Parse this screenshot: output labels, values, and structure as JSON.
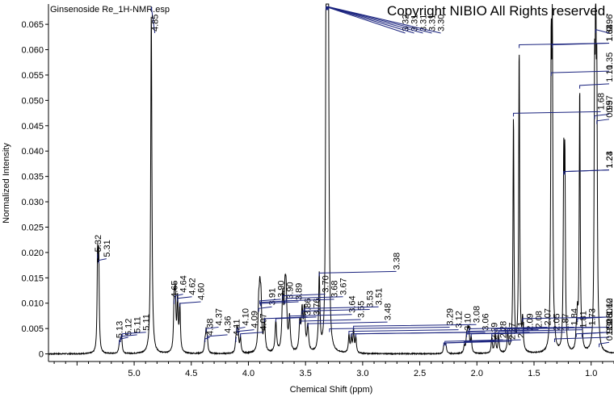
{
  "chart_data": {
    "type": "line",
    "title": "Ginsenoside Re_1H-NMR.esp",
    "copyright": "Copyright NIBIO All Rights reserved.",
    "xlabel": "Chemical Shift (ppm)",
    "ylabel": "Normalized Intensity",
    "xlim": [
      5.75,
      0.8
    ],
    "ylim": [
      -0.0015,
      0.069
    ],
    "x_reversed": true,
    "xticks": [
      {
        "v": 5.0,
        "label": "5.0"
      },
      {
        "v": 4.5,
        "label": "4.5"
      },
      {
        "v": 4.0,
        "label": "4.0"
      },
      {
        "v": 3.5,
        "label": "3.5"
      },
      {
        "v": 3.0,
        "label": "3.0"
      },
      {
        "v": 2.5,
        "label": "2.5"
      },
      {
        "v": 2.0,
        "label": "2.0"
      },
      {
        "v": 1.5,
        "label": "1.5"
      },
      {
        "v": 1.0,
        "label": "1.0"
      }
    ],
    "yticks": [
      {
        "v": 0.0,
        "label": "0"
      },
      {
        "v": 0.005,
        "label": "0.005"
      },
      {
        "v": 0.01,
        "label": "0.010"
      },
      {
        "v": 0.015,
        "label": "0.015"
      },
      {
        "v": 0.02,
        "label": "0.020"
      },
      {
        "v": 0.025,
        "label": "0.025"
      },
      {
        "v": 0.03,
        "label": "0.030"
      },
      {
        "v": 0.035,
        "label": "0.035"
      },
      {
        "v": 0.04,
        "label": "0.040"
      },
      {
        "v": 0.045,
        "label": "0.045"
      },
      {
        "v": 0.05,
        "label": "0.050"
      },
      {
        "v": 0.055,
        "label": "0.055"
      },
      {
        "v": 0.06,
        "label": "0.060"
      },
      {
        "v": 0.065,
        "label": "0.065"
      }
    ],
    "peaks": [
      {
        "x": 5.32,
        "y": 0.0185,
        "w": 0.005
      },
      {
        "x": 5.31,
        "y": 0.0175,
        "w": 0.005
      },
      {
        "x": 5.13,
        "y": 0.0015,
        "w": 0.006
      },
      {
        "x": 5.12,
        "y": 0.002,
        "w": 0.006
      },
      {
        "x": 5.11,
        "y": 0.003,
        "w": 0.006
      },
      {
        "x": 4.85,
        "y": 0.0675,
        "w": 0.006
      },
      {
        "x": 4.65,
        "y": 0.0095,
        "w": 0.006
      },
      {
        "x": 4.64,
        "y": 0.0105,
        "w": 0.006
      },
      {
        "x": 4.62,
        "y": 0.01,
        "w": 0.006
      },
      {
        "x": 4.6,
        "y": 0.009,
        "w": 0.006
      },
      {
        "x": 4.38,
        "y": 0.002,
        "w": 0.006
      },
      {
        "x": 4.37,
        "y": 0.004,
        "w": 0.006
      },
      {
        "x": 4.36,
        "y": 0.0025,
        "w": 0.006
      },
      {
        "x": 4.11,
        "y": 0.002,
        "w": 0.006
      },
      {
        "x": 4.1,
        "y": 0.004,
        "w": 0.006
      },
      {
        "x": 4.09,
        "y": 0.0035,
        "w": 0.006
      },
      {
        "x": 4.07,
        "y": 0.003,
        "w": 0.006
      },
      {
        "x": 3.91,
        "y": 0.008,
        "w": 0.007
      },
      {
        "x": 3.9,
        "y": 0.0095,
        "w": 0.007
      },
      {
        "x": 3.89,
        "y": 0.009,
        "w": 0.007
      },
      {
        "x": 3.86,
        "y": 0.006,
        "w": 0.008
      },
      {
        "x": 3.76,
        "y": 0.006,
        "w": 0.008
      },
      {
        "x": 3.7,
        "y": 0.0105,
        "w": 0.008
      },
      {
        "x": 3.68,
        "y": 0.0095,
        "w": 0.008
      },
      {
        "x": 3.67,
        "y": 0.01,
        "w": 0.008
      },
      {
        "x": 3.64,
        "y": 0.0065,
        "w": 0.008
      },
      {
        "x": 3.55,
        "y": 0.0055,
        "w": 0.008
      },
      {
        "x": 3.53,
        "y": 0.0075,
        "w": 0.008
      },
      {
        "x": 3.51,
        "y": 0.008,
        "w": 0.008
      },
      {
        "x": 3.48,
        "y": 0.005,
        "w": 0.008
      },
      {
        "x": 3.38,
        "y": 0.015,
        "w": 0.007
      },
      {
        "x": 3.32,
        "y": 0.0675,
        "w": 0.005
      },
      {
        "x": 3.31,
        "y": 0.0675,
        "w": 0.005
      },
      {
        "x": 3.3,
        "y": 0.0675,
        "w": 0.005
      },
      {
        "x": 3.29,
        "y": 0.004,
        "w": 0.006
      },
      {
        "x": 3.12,
        "y": 0.0035,
        "w": 0.006
      },
      {
        "x": 3.1,
        "y": 0.003,
        "w": 0.006
      },
      {
        "x": 3.08,
        "y": 0.0045,
        "w": 0.006
      },
      {
        "x": 3.06,
        "y": 0.003,
        "w": 0.006
      },
      {
        "x": 2.29,
        "y": 0.0012,
        "w": 0.006
      },
      {
        "x": 2.28,
        "y": 0.0015,
        "w": 0.006
      },
      {
        "x": 2.27,
        "y": 0.0012,
        "w": 0.006
      },
      {
        "x": 2.11,
        "y": 0.0015,
        "w": 0.006
      },
      {
        "x": 2.09,
        "y": 0.003,
        "w": 0.006
      },
      {
        "x": 2.08,
        "y": 0.0035,
        "w": 0.006
      },
      {
        "x": 2.07,
        "y": 0.004,
        "w": 0.006
      },
      {
        "x": 2.05,
        "y": 0.003,
        "w": 0.006
      },
      {
        "x": 1.87,
        "y": 0.003,
        "w": 0.006
      },
      {
        "x": 1.84,
        "y": 0.004,
        "w": 0.006
      },
      {
        "x": 1.81,
        "y": 0.0035,
        "w": 0.006
      },
      {
        "x": 1.73,
        "y": 0.004,
        "w": 0.006
      },
      {
        "x": 1.68,
        "y": 0.0465,
        "w": 0.005
      },
      {
        "x": 1.63,
        "y": 0.06,
        "w": 0.005
      },
      {
        "x": 1.6,
        "y": 0.006,
        "w": 0.006
      },
      {
        "x": 1.35,
        "y": 0.0545,
        "w": 0.005
      },
      {
        "x": 1.34,
        "y": 0.06,
        "w": 0.005
      },
      {
        "x": 1.32,
        "y": 0.002,
        "w": 0.006
      },
      {
        "x": 1.24,
        "y": 0.035,
        "w": 0.005
      },
      {
        "x": 1.23,
        "y": 0.035,
        "w": 0.005
      },
      {
        "x": 1.13,
        "y": 0.003,
        "w": 0.006
      },
      {
        "x": 1.12,
        "y": 0.006,
        "w": 0.006
      },
      {
        "x": 1.1,
        "y": 0.052,
        "w": 0.005
      },
      {
        "x": 1.08,
        "y": 0.003,
        "w": 0.006
      },
      {
        "x": 0.97,
        "y": 0.046,
        "w": 0.005
      },
      {
        "x": 0.96,
        "y": 0.063,
        "w": 0.005
      },
      {
        "x": 0.95,
        "y": 0.045,
        "w": 0.005
      },
      {
        "x": 0.93,
        "y": 0.001,
        "w": 0.006
      }
    ],
    "annotations": [
      {
        "label": "5.32",
        "x": 5.32,
        "y": 0.0185
      },
      {
        "label": "5.31",
        "x": 5.31,
        "y": 0.0175
      },
      {
        "label": "5.13",
        "x": 5.13,
        "y": 0.0015
      },
      {
        "label": "5.12",
        "x": 5.12,
        "y": 0.002
      },
      {
        "label": "5.11",
        "x": 5.115,
        "y": 0.0025
      },
      {
        "label": "5.11",
        "x": 5.105,
        "y": 0.003
      },
      {
        "label": "4.85",
        "x": 4.85,
        "y": 0.0675
      },
      {
        "label": "4.65",
        "x": 4.65,
        "y": 0.0095
      },
      {
        "label": "4.64",
        "x": 4.64,
        "y": 0.0105
      },
      {
        "label": "4.62",
        "x": 4.62,
        "y": 0.01
      },
      {
        "label": "4.60",
        "x": 4.6,
        "y": 0.009
      },
      {
        "label": "4.38",
        "x": 4.38,
        "y": 0.002
      },
      {
        "label": "4.37",
        "x": 4.37,
        "y": 0.004
      },
      {
        "label": "4.36",
        "x": 4.36,
        "y": 0.0025
      },
      {
        "label": "4.11",
        "x": 4.11,
        "y": 0.002
      },
      {
        "label": "4.10",
        "x": 4.1,
        "y": 0.004
      },
      {
        "label": "4.09",
        "x": 4.09,
        "y": 0.0035
      },
      {
        "label": "4.07",
        "x": 4.07,
        "y": 0.003
      },
      {
        "label": "3.91",
        "x": 3.91,
        "y": 0.008
      },
      {
        "label": "3.90",
        "x": 3.9,
        "y": 0.0095
      },
      {
        "label": "3.90",
        "x": 3.895,
        "y": 0.0092
      },
      {
        "label": "3.89",
        "x": 3.89,
        "y": 0.009
      },
      {
        "label": "3.86",
        "x": 3.86,
        "y": 0.006
      },
      {
        "label": "3.76",
        "x": 3.76,
        "y": 0.006
      },
      {
        "label": "3.70",
        "x": 3.7,
        "y": 0.0105
      },
      {
        "label": "3.68",
        "x": 3.68,
        "y": 0.0095
      },
      {
        "label": "3.67",
        "x": 3.67,
        "y": 0.01
      },
      {
        "label": "3.64",
        "x": 3.64,
        "y": 0.0065
      },
      {
        "label": "3.55",
        "x": 3.55,
        "y": 0.0055
      },
      {
        "label": "3.53",
        "x": 3.53,
        "y": 0.0075
      },
      {
        "label": "3.51",
        "x": 3.51,
        "y": 0.008
      },
      {
        "label": "3.48",
        "x": 3.48,
        "y": 0.005
      },
      {
        "label": "3.38",
        "x": 3.38,
        "y": 0.015
      },
      {
        "label": "3.32",
        "x": 3.32,
        "y": 0.0675
      },
      {
        "label": "3.31",
        "x": 3.315,
        "y": 0.0675
      },
      {
        "label": "3.31",
        "x": 3.31,
        "y": 0.0675
      },
      {
        "label": "3.31",
        "x": 3.305,
        "y": 0.0675
      },
      {
        "label": "3.30",
        "x": 3.3,
        "y": 0.0675
      },
      {
        "label": "3.29",
        "x": 3.29,
        "y": 0.004
      },
      {
        "label": "3.12",
        "x": 3.12,
        "y": 0.0035
      },
      {
        "label": "3.10",
        "x": 3.1,
        "y": 0.003
      },
      {
        "label": "3.08",
        "x": 3.08,
        "y": 0.0045
      },
      {
        "label": "3.06",
        "x": 3.06,
        "y": 0.003
      },
      {
        "label": "2.29",
        "x": 2.29,
        "y": 0.0012
      },
      {
        "label": "2.28",
        "x": 2.28,
        "y": 0.0015
      },
      {
        "label": "2.27",
        "x": 2.27,
        "y": 0.0012
      },
      {
        "label": "2.11",
        "x": 2.11,
        "y": 0.0015
      },
      {
        "label": "2.09",
        "x": 2.09,
        "y": 0.003
      },
      {
        "label": "2.08",
        "x": 2.08,
        "y": 0.0035
      },
      {
        "label": "2.07",
        "x": 2.07,
        "y": 0.004
      },
      {
        "label": "2.05",
        "x": 2.05,
        "y": 0.003
      },
      {
        "label": "1.87",
        "x": 1.87,
        "y": 0.003
      },
      {
        "label": "1.84",
        "x": 1.84,
        "y": 0.004
      },
      {
        "label": "1.81",
        "x": 1.81,
        "y": 0.0035
      },
      {
        "label": "1.73",
        "x": 1.73,
        "y": 0.004
      },
      {
        "label": "1.68",
        "x": 1.68,
        "y": 0.0465
      },
      {
        "label": "1.63",
        "x": 1.63,
        "y": 0.06
      },
      {
        "label": "1.60",
        "x": 1.6,
        "y": 0.006
      },
      {
        "label": "1.60",
        "x": 1.595,
        "y": 0.004
      },
      {
        "label": "1.35",
        "x": 1.35,
        "y": 0.0545
      },
      {
        "label": "1.34",
        "x": 1.34,
        "y": 0.06
      },
      {
        "label": "1.32",
        "x": 1.32,
        "y": 0.002
      },
      {
        "label": "1.24",
        "x": 1.24,
        "y": 0.035
      },
      {
        "label": "1.23",
        "x": 1.23,
        "y": 0.035
      },
      {
        "label": "1.13",
        "x": 1.13,
        "y": 0.003
      },
      {
        "label": "1.12",
        "x": 1.12,
        "y": 0.006
      },
      {
        "label": "1.10",
        "x": 1.1,
        "y": 0.052
      },
      {
        "label": "1.08",
        "x": 1.08,
        "y": 0.003
      },
      {
        "label": "0.97",
        "x": 0.97,
        "y": 0.046
      },
      {
        "label": "0.96",
        "x": 0.96,
        "y": 0.063
      },
      {
        "label": "0.95",
        "x": 0.95,
        "y": 0.045
      },
      {
        "label": "0.93",
        "x": 0.93,
        "y": 0.001
      }
    ],
    "colors": {
      "spectrum": "#000000",
      "axis": "#000000",
      "peak_label_line": "#1a237e",
      "background": "#ffffff"
    }
  }
}
